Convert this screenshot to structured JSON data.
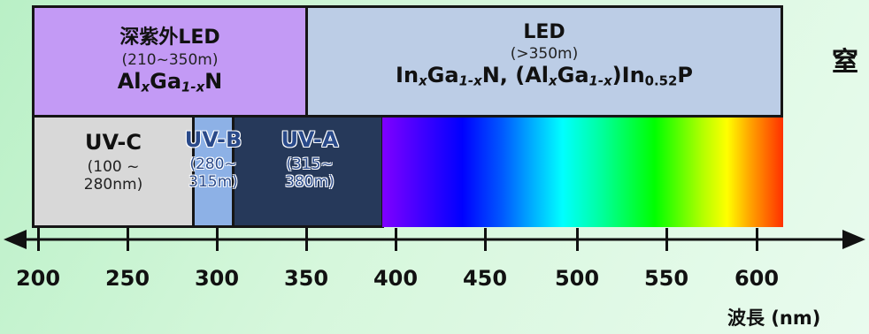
{
  "top_row": {
    "deep_uv_led": {
      "title": "深紫外LED",
      "range": "(210~350m)",
      "formula": {
        "a": "Al",
        "a_sub": "x",
        "b": "Ga",
        "b_sub": "1-x",
        "c": "N"
      },
      "color": "#c39af5"
    },
    "led": {
      "title": "LED",
      "range": "(>350m)",
      "formula": {
        "p1": "In",
        "p1_sub": "x",
        "p2": "Ga",
        "p2_sub": "1-x",
        "p3": "N, (Al",
        "p3_sub": "x",
        "p4": "Ga",
        "p4_sub": "1-x",
        "p5": ")In",
        "p5_sub": "0.52",
        "p6": "P"
      },
      "color": "#bccde6"
    }
  },
  "uv_bands": [
    {
      "name": "UV-C",
      "range_1": "(100 ~",
      "range_2": "280nm)",
      "color": "#d8d8d8"
    },
    {
      "name": "UV-B",
      "range_1": "(280~",
      "range_2": "315m)",
      "color": "#8db1e6"
    },
    {
      "name": "UV-A",
      "range_1": "(315~",
      "range_2": "380m)",
      "color": "#26395a"
    }
  ],
  "side_text": "窒",
  "axis": {
    "ticks": [
      "200",
      "250",
      "300",
      "350",
      "400",
      "450",
      "500",
      "550",
      "600"
    ],
    "label": "波長 (nm)"
  }
}
